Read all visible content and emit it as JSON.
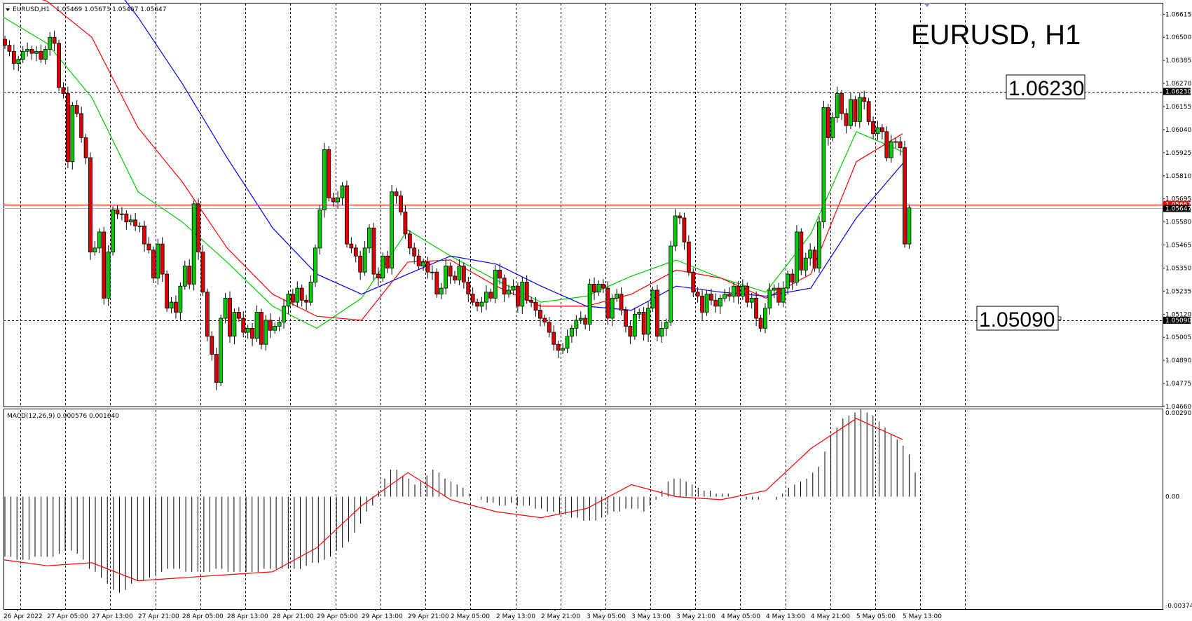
{
  "chart_data": {
    "type": "candlestick",
    "symbol_header": "EURUSD,H1",
    "ohlc_header": "1.05469 1.05673 1.05467 1.05647",
    "title": "EURUSD, H1",
    "price_axis_labels": [
      "1.06615",
      "1.06500",
      "1.06385",
      "1.06270",
      "1.06155",
      "1.06040",
      "1.05925",
      "1.05810",
      "1.05695",
      "1.05580",
      "1.05465",
      "1.05350",
      "1.05235",
      "1.05120",
      "1.05005",
      "1.04890",
      "1.04775",
      "1.04660"
    ],
    "price_range": [
      1.0466,
      1.06672
    ],
    "current_price_label": "1.05647",
    "horizontal_line_price": 1.05667,
    "horizontal_line_label": "1.05667",
    "level_annotations": [
      {
        "label": "1.06230",
        "price": 1.0623,
        "axis_label": "1.06230"
      },
      {
        "label": "1.05090",
        "price": 1.0509,
        "axis_label": "1.05090"
      }
    ],
    "time_labels": [
      "26 Apr 2022",
      "27 Apr 05:00",
      "27 Apr 13:00",
      "27 Apr 21:00",
      "28 Apr 05:00",
      "28 Apr 13:00",
      "28 Apr 21:00",
      "29 Apr 05:00",
      "29 Apr 13:00",
      "29 Apr 21:00",
      "2 May 05:00",
      "2 May 13:00",
      "2 May 21:00",
      "3 May 05:00",
      "3 May 13:00",
      "3 May 21:00",
      "4 May 05:00",
      "4 May 13:00",
      "4 May 21:00",
      "5 May 05:00",
      "5 May 13:00"
    ],
    "closes": [
      1.0646,
      1.0643,
      1.0637,
      1.0639,
      1.0643,
      1.0644,
      1.0642,
      1.0643,
      1.0639,
      1.0644,
      1.065,
      1.0647,
      1.0625,
      1.0622,
      1.0588,
      1.0616,
      1.0612,
      1.06,
      1.059,
      1.0543,
      1.0545,
      1.0553,
      1.052,
      1.0543,
      1.0564,
      1.0562,
      1.0562,
      1.0558,
      1.0559,
      1.0556,
      1.0556,
      1.0547,
      1.0544,
      1.053,
      1.0547,
      1.0532,
      1.0515,
      1.0518,
      1.0513,
      1.0526,
      1.0536,
      1.0527,
      1.0567,
      1.0543,
      1.0523,
      1.0501,
      1.0492,
      1.0478,
      1.051,
      1.052,
      1.0501,
      1.0513,
      1.051,
      1.0503,
      1.0505,
      1.05,
      1.0513,
      1.0497,
      1.0509,
      1.0504,
      1.0506,
      1.0508,
      1.0516,
      1.0522,
      1.0518,
      1.0525,
      1.0519,
      1.0518,
      1.0528,
      1.0545,
      1.0564,
      1.0594,
      1.057,
      1.0568,
      1.057,
      1.0576,
      1.0547,
      1.0545,
      1.0541,
      1.0533,
      1.0545,
      1.0555,
      1.0532,
      1.053,
      1.0541,
      1.0535,
      1.0573,
      1.0571,
      1.0563,
      1.0552,
      1.0545,
      1.0541,
      1.0536,
      1.0538,
      1.0533,
      1.0533,
      1.0522,
      1.0525,
      1.0536,
      1.0531,
      1.0529,
      1.0536,
      1.0528,
      1.0522,
      1.0518,
      1.0516,
      1.0518,
      1.0523,
      1.052,
      1.0534,
      1.053,
      1.0522,
      1.0524,
      1.0526,
      1.0516,
      1.0528,
      1.0519,
      1.0518,
      1.0514,
      1.051,
      1.0508,
      1.0503,
      1.0497,
      1.0494,
      1.0495,
      1.0501,
      1.0505,
      1.0509,
      1.051,
      1.0507,
      1.0527,
      1.0523,
      1.0527,
      1.0525,
      1.051,
      1.052,
      1.0522,
      1.0514,
      1.0506,
      1.0501,
      1.0512,
      1.0513,
      1.0502,
      1.0515,
      1.0524,
      1.0501,
      1.0505,
      1.0508,
      1.0546,
      1.0561,
      1.056,
      1.0548,
      1.0533,
      1.0523,
      1.0521,
      1.0513,
      1.0522,
      1.0519,
      1.0516,
      1.052,
      1.0522,
      1.0521,
      1.0526,
      1.0521,
      1.0526,
      1.0518,
      1.052,
      1.051,
      1.0505,
      1.0515,
      1.0524,
      1.0525,
      1.0518,
      1.0525,
      1.0532,
      1.0528,
      1.0553,
      1.0534,
      1.054,
      1.0544,
      1.0535,
      1.0558,
      1.0615,
      1.06,
      1.061,
      1.0622,
      1.0612,
      1.0606,
      1.0619,
      1.0608,
      1.062,
      1.0618,
      1.0608,
      1.0602,
      1.0605,
      1.0603,
      1.059,
      1.0598,
      1.0598,
      1.0595,
      1.0547,
      1.0565
    ],
    "ma_series": [
      {
        "color": "#00cc00",
        "values_at_time_labels": [
          1.066,
          1.0647,
          1.062,
          1.0573,
          1.0558,
          1.0538,
          1.0516,
          1.0505,
          1.052,
          1.0554,
          1.0541,
          1.0529,
          1.0518,
          1.0521,
          1.0531,
          1.0539,
          1.053,
          1.0523,
          1.0552,
          1.0603,
          1.0593
        ]
      },
      {
        "color": "#ff0000",
        "values_at_time_labels": [
          1.0675,
          1.0668,
          1.065,
          1.0605,
          1.0578,
          1.0545,
          1.0522,
          1.0511,
          1.0509,
          1.0538,
          1.0539,
          1.0526,
          1.0516,
          1.0516,
          1.0522,
          1.0534,
          1.053,
          1.052,
          1.0532,
          1.0588,
          1.0602
        ]
      },
      {
        "color": "#0000ff",
        "values_at_time_labels": [
          1.07,
          1.07,
          1.069,
          1.066,
          1.0627,
          1.059,
          1.0555,
          1.0532,
          1.0522,
          1.0532,
          1.0541,
          1.0537,
          1.0526,
          1.0516,
          1.0514,
          1.0526,
          1.0523,
          1.0521,
          1.0525,
          1.056,
          1.0587
        ]
      }
    ],
    "macd": {
      "header": "MACD(12,26,9) 0.000576 0.001640",
      "axis_labels": [
        "0.002906",
        "0.00",
        "-0.003742"
      ],
      "range": [
        -0.003742,
        0.002906
      ],
      "histogram": [
        -0.002,
        -0.002,
        -0.0021,
        -0.0021,
        -0.0021,
        -0.002,
        -0.002,
        -0.002,
        -0.002,
        -0.0019,
        -0.0018,
        -0.0018,
        -0.0019,
        -0.0021,
        -0.0024,
        -0.0025,
        -0.0027,
        -0.0029,
        -0.0031,
        -0.0032,
        -0.0031,
        -0.0029,
        -0.0028,
        -0.0028,
        -0.0027,
        -0.0026,
        -0.0025,
        -0.0024,
        -0.0024,
        -0.0024,
        -0.0025,
        -0.0025,
        -0.0025,
        -0.0025,
        -0.0025,
        -0.0024,
        -0.0024,
        -0.0025,
        -0.0025,
        -0.0025,
        -0.0025,
        -0.0025,
        -0.0025,
        -0.0024,
        -0.0024,
        -0.0024,
        -0.0024,
        -0.0024,
        -0.0024,
        -0.0024,
        -0.0023,
        -0.0022,
        -0.0022,
        -0.0021,
        -0.002,
        -0.0018,
        -0.0017,
        -0.0015,
        -0.0012,
        -0.0009,
        -0.0005,
        -0.0003,
        0.0002,
        0.0006,
        0.0009,
        0.0009,
        0.0007,
        0.0006,
        0.0004,
        0.0005,
        0.0007,
        0.0009,
        0.0008,
        0.0006,
        0.0005,
        0.0004,
        0.0003,
        0.0001,
        0.0,
        -0.0001,
        -0.0002,
        -0.0002,
        -0.0003,
        -0.0003,
        -0.0002,
        -0.0003,
        -0.0003,
        -0.0003,
        -0.0004,
        -0.0004,
        -0.0005,
        -0.0005,
        -0.0006,
        -0.0006,
        -0.0007,
        -0.0007,
        -0.0008,
        -0.0008,
        -0.0008,
        -0.0007,
        -0.0006,
        -0.0005,
        -0.0005,
        -0.0004,
        -0.0004,
        -0.0004,
        -0.0005,
        -0.0003,
        -0.0001,
        0.0002,
        0.0005,
        0.0006,
        0.0006,
        0.0005,
        0.0004,
        0.0003,
        0.0002,
        0.0002,
        0.0001,
        0.0001,
        0.0001,
        0.0,
        0.0,
        -0.0001,
        -0.0001,
        -0.0001,
        0.0,
        0.0,
        -0.0001,
        0.0001,
        0.0003,
        0.0004,
        0.0005,
        0.0006,
        0.0008,
        0.001,
        0.0015,
        0.002,
        0.0023,
        0.0026,
        0.0027,
        0.0028,
        0.0029,
        0.0028,
        0.0027,
        0.0025,
        0.0023,
        0.0021,
        0.0019,
        0.0017,
        0.0014,
        0.0008
      ],
      "signal_at_time_labels": [
        -0.0021,
        -0.0023,
        -0.0022,
        -0.0028,
        -0.0027,
        -0.0026,
        -0.0025,
        -0.0017,
        -0.0003,
        0.0008,
        -0.0001,
        -0.0005,
        -0.0007,
        -0.0004,
        0.0004,
        0.0,
        -0.0001,
        0.0002,
        0.0016,
        0.0026,
        0.0019
      ]
    }
  }
}
